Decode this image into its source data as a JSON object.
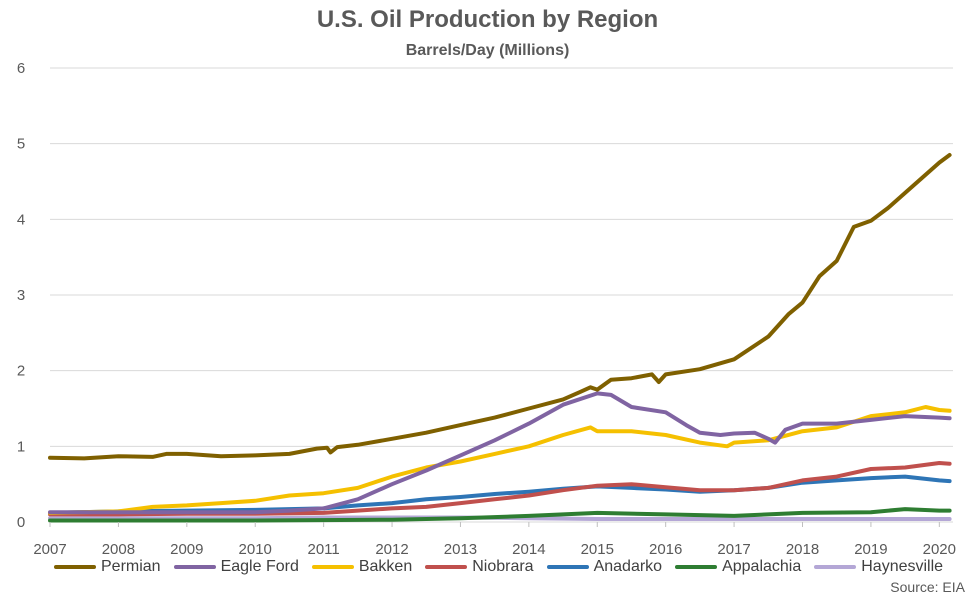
{
  "chart_data": {
    "type": "line",
    "title": "U.S. Oil Production by Region",
    "subtitle": "Barrels/Day (Millions)",
    "xlabel": "",
    "ylabel": "",
    "x_ticks": [
      "2007",
      "2008",
      "2009",
      "2010",
      "2011",
      "2012",
      "2013",
      "2014",
      "2015",
      "2016",
      "2017",
      "2018",
      "2019",
      "2020"
    ],
    "y_ticks": [
      "0",
      "1",
      "2",
      "3",
      "4",
      "5",
      "6"
    ],
    "xlim": [
      2007,
      2020.2
    ],
    "ylim": [
      0,
      6
    ],
    "grid": true,
    "legend_position": "bottom",
    "series": [
      {
        "name": "Permian",
        "color": "#7f6000",
        "points": [
          [
            2007,
            0.85
          ],
          [
            2007.5,
            0.84
          ],
          [
            2008,
            0.87
          ],
          [
            2008.5,
            0.86
          ],
          [
            2008.7,
            0.9
          ],
          [
            2009,
            0.9
          ],
          [
            2009.5,
            0.87
          ],
          [
            2010,
            0.88
          ],
          [
            2010.5,
            0.9
          ],
          [
            2010.9,
            0.97
          ],
          [
            2011.05,
            0.98
          ],
          [
            2011.1,
            0.92
          ],
          [
            2011.2,
            0.99
          ],
          [
            2011.5,
            1.02
          ],
          [
            2012,
            1.1
          ],
          [
            2012.5,
            1.18
          ],
          [
            2013,
            1.28
          ],
          [
            2013.5,
            1.38
          ],
          [
            2014,
            1.5
          ],
          [
            2014.5,
            1.62
          ],
          [
            2014.75,
            1.72
          ],
          [
            2014.9,
            1.78
          ],
          [
            2015,
            1.75
          ],
          [
            2015.2,
            1.88
          ],
          [
            2015.5,
            1.9
          ],
          [
            2015.8,
            1.95
          ],
          [
            2015.9,
            1.85
          ],
          [
            2016,
            1.95
          ],
          [
            2016.5,
            2.02
          ],
          [
            2017,
            2.15
          ],
          [
            2017.5,
            2.45
          ],
          [
            2017.8,
            2.75
          ],
          [
            2018,
            2.9
          ],
          [
            2018.25,
            3.25
          ],
          [
            2018.5,
            3.45
          ],
          [
            2018.75,
            3.9
          ],
          [
            2019,
            3.98
          ],
          [
            2019.25,
            4.15
          ],
          [
            2019.5,
            4.35
          ],
          [
            2019.75,
            4.55
          ],
          [
            2020,
            4.75
          ],
          [
            2020.15,
            4.85
          ]
        ]
      },
      {
        "name": "Eagle Ford",
        "color": "#8064a2",
        "points": [
          [
            2007,
            0.13
          ],
          [
            2008,
            0.13
          ],
          [
            2009,
            0.13
          ],
          [
            2010,
            0.13
          ],
          [
            2010.5,
            0.15
          ],
          [
            2011,
            0.18
          ],
          [
            2011.5,
            0.3
          ],
          [
            2012,
            0.5
          ],
          [
            2012.5,
            0.68
          ],
          [
            2013,
            0.88
          ],
          [
            2013.5,
            1.08
          ],
          [
            2014,
            1.3
          ],
          [
            2014.5,
            1.55
          ],
          [
            2015,
            1.7
          ],
          [
            2015.2,
            1.68
          ],
          [
            2015.5,
            1.52
          ],
          [
            2016,
            1.45
          ],
          [
            2016.3,
            1.28
          ],
          [
            2016.5,
            1.18
          ],
          [
            2016.8,
            1.15
          ],
          [
            2017,
            1.17
          ],
          [
            2017.3,
            1.18
          ],
          [
            2017.5,
            1.1
          ],
          [
            2017.6,
            1.05
          ],
          [
            2017.75,
            1.22
          ],
          [
            2018,
            1.3
          ],
          [
            2018.5,
            1.3
          ],
          [
            2019,
            1.35
          ],
          [
            2019.5,
            1.4
          ],
          [
            2020,
            1.38
          ],
          [
            2020.15,
            1.37
          ]
        ]
      },
      {
        "name": "Bakken",
        "color": "#f5c000",
        "points": [
          [
            2007,
            0.12
          ],
          [
            2008,
            0.14
          ],
          [
            2008.5,
            0.2
          ],
          [
            2009,
            0.22
          ],
          [
            2009.5,
            0.25
          ],
          [
            2010,
            0.28
          ],
          [
            2010.5,
            0.35
          ],
          [
            2011,
            0.38
          ],
          [
            2011.5,
            0.45
          ],
          [
            2012,
            0.6
          ],
          [
            2012.5,
            0.72
          ],
          [
            2013,
            0.8
          ],
          [
            2013.5,
            0.9
          ],
          [
            2014,
            1.0
          ],
          [
            2014.5,
            1.15
          ],
          [
            2014.9,
            1.25
          ],
          [
            2015,
            1.2
          ],
          [
            2015.5,
            1.2
          ],
          [
            2016,
            1.15
          ],
          [
            2016.5,
            1.05
          ],
          [
            2016.9,
            1.0
          ],
          [
            2017,
            1.05
          ],
          [
            2017.5,
            1.08
          ],
          [
            2018,
            1.2
          ],
          [
            2018.5,
            1.25
          ],
          [
            2019,
            1.4
          ],
          [
            2019.5,
            1.45
          ],
          [
            2019.8,
            1.52
          ],
          [
            2020,
            1.48
          ],
          [
            2020.15,
            1.47
          ]
        ]
      },
      {
        "name": "Niobrara",
        "color": "#c0504d",
        "points": [
          [
            2007,
            0.1
          ],
          [
            2008,
            0.1
          ],
          [
            2009,
            0.11
          ],
          [
            2010,
            0.11
          ],
          [
            2011,
            0.12
          ],
          [
            2011.5,
            0.15
          ],
          [
            2012,
            0.18
          ],
          [
            2012.5,
            0.2
          ],
          [
            2013,
            0.25
          ],
          [
            2013.5,
            0.3
          ],
          [
            2014,
            0.35
          ],
          [
            2014.5,
            0.42
          ],
          [
            2015,
            0.48
          ],
          [
            2015.5,
            0.5
          ],
          [
            2016,
            0.46
          ],
          [
            2016.5,
            0.42
          ],
          [
            2017,
            0.42
          ],
          [
            2017.5,
            0.45
          ],
          [
            2018,
            0.55
          ],
          [
            2018.5,
            0.6
          ],
          [
            2019,
            0.7
          ],
          [
            2019.5,
            0.72
          ],
          [
            2020,
            0.78
          ],
          [
            2020.15,
            0.77
          ]
        ]
      },
      {
        "name": "Anadarko",
        "color": "#2e75b6",
        "points": [
          [
            2007,
            0.12
          ],
          [
            2008,
            0.14
          ],
          [
            2009,
            0.15
          ],
          [
            2010,
            0.16
          ],
          [
            2011,
            0.18
          ],
          [
            2011.5,
            0.22
          ],
          [
            2012,
            0.25
          ],
          [
            2012.5,
            0.3
          ],
          [
            2013,
            0.33
          ],
          [
            2013.5,
            0.37
          ],
          [
            2014,
            0.4
          ],
          [
            2014.5,
            0.44
          ],
          [
            2015,
            0.47
          ],
          [
            2015.5,
            0.45
          ],
          [
            2016,
            0.43
          ],
          [
            2016.5,
            0.4
          ],
          [
            2017,
            0.42
          ],
          [
            2017.5,
            0.45
          ],
          [
            2018,
            0.52
          ],
          [
            2018.5,
            0.55
          ],
          [
            2019,
            0.58
          ],
          [
            2019.5,
            0.6
          ],
          [
            2020,
            0.55
          ],
          [
            2020.15,
            0.54
          ]
        ]
      },
      {
        "name": "Appalachia",
        "color": "#2e7d32",
        "points": [
          [
            2007,
            0.02
          ],
          [
            2010,
            0.02
          ],
          [
            2012,
            0.03
          ],
          [
            2013,
            0.05
          ],
          [
            2014,
            0.08
          ],
          [
            2015,
            0.12
          ],
          [
            2016,
            0.1
          ],
          [
            2017,
            0.08
          ],
          [
            2018,
            0.12
          ],
          [
            2019,
            0.13
          ],
          [
            2019.5,
            0.17
          ],
          [
            2020,
            0.15
          ],
          [
            2020.15,
            0.15
          ]
        ]
      },
      {
        "name": "Haynesville",
        "color": "#b4a7d6",
        "points": [
          [
            2007,
            0.05
          ],
          [
            2008,
            0.05
          ],
          [
            2009,
            0.05
          ],
          [
            2010,
            0.05
          ],
          [
            2011,
            0.06
          ],
          [
            2012,
            0.06
          ],
          [
            2013,
            0.06
          ],
          [
            2014,
            0.05
          ],
          [
            2015,
            0.04
          ],
          [
            2016,
            0.04
          ],
          [
            2017,
            0.04
          ],
          [
            2018,
            0.04
          ],
          [
            2019,
            0.04
          ],
          [
            2020,
            0.04
          ],
          [
            2020.15,
            0.04
          ]
        ]
      }
    ]
  },
  "source": "Source: EIA"
}
